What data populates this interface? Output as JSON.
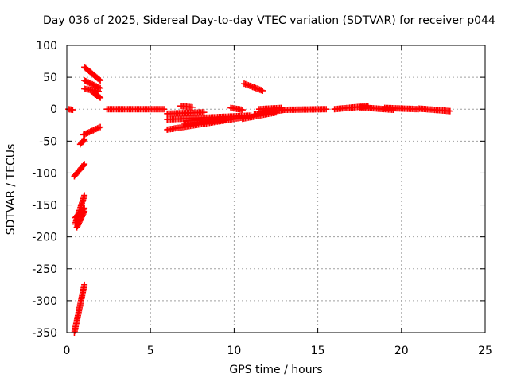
{
  "chart_data": {
    "type": "scatter",
    "title": "Day 036 of 2025, Sidereal Day-to-day VTEC variation (SDTVAR) for receiver p044",
    "xlabel": "GPS time / hours",
    "ylabel": "SDTVAR / TECUs",
    "xlim": [
      0,
      25
    ],
    "ylim": [
      -350,
      100
    ],
    "xticks": [
      0,
      5,
      10,
      15,
      20,
      25
    ],
    "yticks": [
      100,
      50,
      0,
      -50,
      -100,
      -150,
      -200,
      -250,
      -300,
      -350
    ],
    "grid": true,
    "marker": "plus",
    "color": "#ff0000",
    "segments": [
      {
        "x": [
          0.1,
          0.35
        ],
        "y": [
          0,
          -1
        ]
      },
      {
        "x": [
          1.05,
          2.0
        ],
        "y": [
          66,
          45
        ]
      },
      {
        "x": [
          1.05,
          2.0
        ],
        "y": [
          45,
          33
        ]
      },
      {
        "x": [
          1.05,
          1.9
        ],
        "y": [
          32,
          28
        ]
      },
      {
        "x": [
          1.6,
          2.0
        ],
        "y": [
          25,
          18
        ]
      },
      {
        "x": [
          1.0,
          2.0
        ],
        "y": [
          -40,
          -28
        ]
      },
      {
        "x": [
          0.8,
          1.05
        ],
        "y": [
          -55,
          -48
        ]
      },
      {
        "x": [
          0.45,
          1.05
        ],
        "y": [
          -105,
          -86
        ]
      },
      {
        "x": [
          0.5,
          1.05
        ],
        "y": [
          -180,
          -135
        ]
      },
      {
        "x": [
          0.5,
          1.05
        ],
        "y": [
          -170,
          -155
        ]
      },
      {
        "x": [
          0.6,
          1.05
        ],
        "y": [
          -185,
          -160
        ]
      },
      {
        "x": [
          0.45,
          1.05
        ],
        "y": [
          -350,
          -275
        ]
      },
      {
        "x": [
          2.4,
          5.8
        ],
        "y": [
          0,
          0
        ]
      },
      {
        "x": [
          6.0,
          8.2
        ],
        "y": [
          -7,
          -5
        ]
      },
      {
        "x": [
          6.8,
          7.5
        ],
        "y": [
          5,
          3
        ]
      },
      {
        "x": [
          6.0,
          11.0
        ],
        "y": [
          -16,
          -10
        ]
      },
      {
        "x": [
          6.0,
          10.5
        ],
        "y": [
          -32,
          -13
        ]
      },
      {
        "x": [
          7.0,
          9.5
        ],
        "y": [
          -22,
          -17
        ]
      },
      {
        "x": [
          9.8,
          10.5
        ],
        "y": [
          2,
          -1
        ]
      },
      {
        "x": [
          10.6,
          11.7
        ],
        "y": [
          40,
          29
        ]
      },
      {
        "x": [
          10.5,
          12.5
        ],
        "y": [
          -15,
          -5
        ]
      },
      {
        "x": [
          11.2,
          13.0
        ],
        "y": [
          -8,
          -1
        ]
      },
      {
        "x": [
          11.5,
          12.8
        ],
        "y": [
          0,
          2
        ]
      },
      {
        "x": [
          13.0,
          15.5
        ],
        "y": [
          -1,
          0
        ]
      },
      {
        "x": [
          16.0,
          18.0
        ],
        "y": [
          0,
          5
        ]
      },
      {
        "x": [
          17.5,
          19.5
        ],
        "y": [
          3,
          -1
        ]
      },
      {
        "x": [
          19.0,
          21.0
        ],
        "y": [
          2,
          0
        ]
      },
      {
        "x": [
          21.0,
          22.9
        ],
        "y": [
          1,
          -3
        ]
      }
    ]
  }
}
